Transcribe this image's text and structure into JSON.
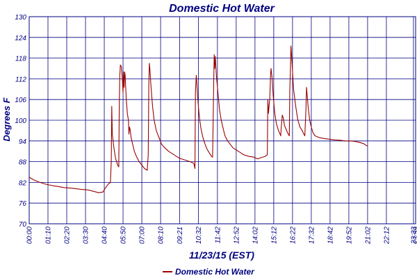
{
  "chart_data": {
    "type": "line",
    "title": "Domestic Hot Water",
    "xlabel": "11/23/15 (EST)",
    "ylabel": "Degrees F",
    "ylim": [
      70,
      130
    ],
    "yticks": [
      "70",
      "76",
      "82",
      "88",
      "94",
      "100",
      "106",
      "112",
      "118",
      "124",
      "130"
    ],
    "xlim": [
      0,
      1441
    ],
    "xticks": [
      {
        "t": 0,
        "label": "00:00"
      },
      {
        "t": 70,
        "label": "01:10"
      },
      {
        "t": 140,
        "label": "02:20"
      },
      {
        "t": 210,
        "label": "03:30"
      },
      {
        "t": 280,
        "label": "04:40"
      },
      {
        "t": 350,
        "label": "05:50"
      },
      {
        "t": 420,
        "label": "07:00"
      },
      {
        "t": 490,
        "label": "08:10"
      },
      {
        "t": 561,
        "label": "09:21"
      },
      {
        "t": 631,
        "label": "10:32"
      },
      {
        "t": 702,
        "label": "11:42"
      },
      {
        "t": 772,
        "label": "12:52"
      },
      {
        "t": 842,
        "label": "14:02"
      },
      {
        "t": 912,
        "label": "15:12"
      },
      {
        "t": 982,
        "label": "16:22"
      },
      {
        "t": 1052,
        "label": "17:32"
      },
      {
        "t": 1122,
        "label": "18:42"
      },
      {
        "t": 1192,
        "label": "19:52"
      },
      {
        "t": 1262,
        "label": "21:02"
      },
      {
        "t": 1332,
        "label": "22:12"
      },
      {
        "t": 1433,
        "label": "23:33"
      },
      {
        "t": 1441,
        "label": "23:59"
      }
    ],
    "grid": true,
    "legend_position": "bottom",
    "series": [
      {
        "name": "Domestic Hot Water",
        "color": "#990000",
        "points": [
          [
            0,
            83.5
          ],
          [
            10,
            83
          ],
          [
            20,
            82.6
          ],
          [
            40,
            82
          ],
          [
            60,
            81.5
          ],
          [
            90,
            81
          ],
          [
            110,
            80.8
          ],
          [
            130,
            80.5
          ],
          [
            160,
            80.3
          ],
          [
            190,
            80
          ],
          [
            220,
            79.8
          ],
          [
            240,
            79.4
          ],
          [
            260,
            79
          ],
          [
            275,
            79.2
          ],
          [
            285,
            80.5
          ],
          [
            295,
            81.5
          ],
          [
            303,
            82
          ],
          [
            306,
            88
          ],
          [
            308,
            104
          ],
          [
            310,
            96
          ],
          [
            316,
            92
          ],
          [
            322,
            89
          ],
          [
            330,
            87
          ],
          [
            334,
            86.5
          ],
          [
            336,
            104
          ],
          [
            338,
            113
          ],
          [
            340,
            116
          ],
          [
            344,
            115.5
          ],
          [
            348,
            111
          ],
          [
            350,
            108
          ],
          [
            352,
            114
          ],
          [
            354,
            109.5
          ],
          [
            356,
            114
          ],
          [
            358,
            113
          ],
          [
            362,
            106
          ],
          [
            366,
            102
          ],
          [
            370,
            100
          ],
          [
            372,
            96
          ],
          [
            374,
            98
          ],
          [
            376,
            97.5
          ],
          [
            380,
            95
          ],
          [
            386,
            93
          ],
          [
            392,
            91
          ],
          [
            400,
            89.5
          ],
          [
            410,
            88
          ],
          [
            420,
            87
          ],
          [
            430,
            86
          ],
          [
            440,
            85.5
          ],
          [
            444,
            90
          ],
          [
            446,
            110
          ],
          [
            448,
            116.5
          ],
          [
            450,
            115
          ],
          [
            454,
            110
          ],
          [
            460,
            104
          ],
          [
            466,
            100
          ],
          [
            474,
            97
          ],
          [
            484,
            95
          ],
          [
            494,
            93
          ],
          [
            506,
            92
          ],
          [
            520,
            91
          ],
          [
            540,
            90
          ],
          [
            560,
            89
          ],
          [
            580,
            88.5
          ],
          [
            600,
            88
          ],
          [
            614,
            87.5
          ],
          [
            618,
            86
          ],
          [
            620,
            108
          ],
          [
            623,
            113
          ],
          [
            625,
            111
          ],
          [
            628,
            107
          ],
          [
            632,
            103
          ],
          [
            636,
            100
          ],
          [
            642,
            97
          ],
          [
            648,
            95
          ],
          [
            656,
            93
          ],
          [
            664,
            91.5
          ],
          [
            672,
            90.5
          ],
          [
            680,
            89.5
          ],
          [
            684,
            89.3
          ],
          [
            688,
            111
          ],
          [
            690,
            119
          ],
          [
            692,
            115
          ],
          [
            694,
            118.5
          ],
          [
            698,
            113
          ],
          [
            704,
            108
          ],
          [
            710,
            103
          ],
          [
            716,
            100
          ],
          [
            722,
            98
          ],
          [
            730,
            95.5
          ],
          [
            740,
            94
          ],
          [
            760,
            92
          ],
          [
            780,
            91
          ],
          [
            800,
            90
          ],
          [
            820,
            89.5
          ],
          [
            838,
            89.3
          ],
          [
            852,
            88.8
          ],
          [
            866,
            89.2
          ],
          [
            880,
            89.5
          ],
          [
            888,
            90
          ],
          [
            890,
            106
          ],
          [
            892,
            102
          ],
          [
            894,
            103.5
          ],
          [
            897,
            106
          ],
          [
            900,
            113
          ],
          [
            902,
            115
          ],
          [
            906,
            112
          ],
          [
            910,
            107
          ],
          [
            916,
            102
          ],
          [
            922,
            99
          ],
          [
            930,
            97
          ],
          [
            938,
            95.5
          ],
          [
            940,
            98
          ],
          [
            944,
            101.5
          ],
          [
            948,
            100.5
          ],
          [
            952,
            98.5
          ],
          [
            960,
            97
          ],
          [
            966,
            96
          ],
          [
            970,
            95.5
          ],
          [
            972,
            109
          ],
          [
            974,
            114
          ],
          [
            976,
            121.5
          ],
          [
            980,
            117
          ],
          [
            986,
            109
          ],
          [
            994,
            104
          ],
          [
            1002,
            100
          ],
          [
            1010,
            98
          ],
          [
            1018,
            97
          ],
          [
            1024,
            96
          ],
          [
            1028,
            95.5
          ],
          [
            1032,
            103
          ],
          [
            1034,
            109.5
          ],
          [
            1036,
            108
          ],
          [
            1040,
            104
          ],
          [
            1046,
            100
          ],
          [
            1052,
            98
          ],
          [
            1058,
            96.5
          ],
          [
            1066,
            95.5
          ],
          [
            1080,
            95
          ],
          [
            1100,
            94.7
          ],
          [
            1120,
            94.5
          ],
          [
            1140,
            94.3
          ],
          [
            1160,
            94.2
          ],
          [
            1180,
            94
          ],
          [
            1200,
            94
          ],
          [
            1220,
            93.8
          ],
          [
            1236,
            93.5
          ],
          [
            1248,
            93.2
          ],
          [
            1255,
            92.8
          ],
          [
            1262,
            92.5
          ]
        ]
      }
    ]
  }
}
